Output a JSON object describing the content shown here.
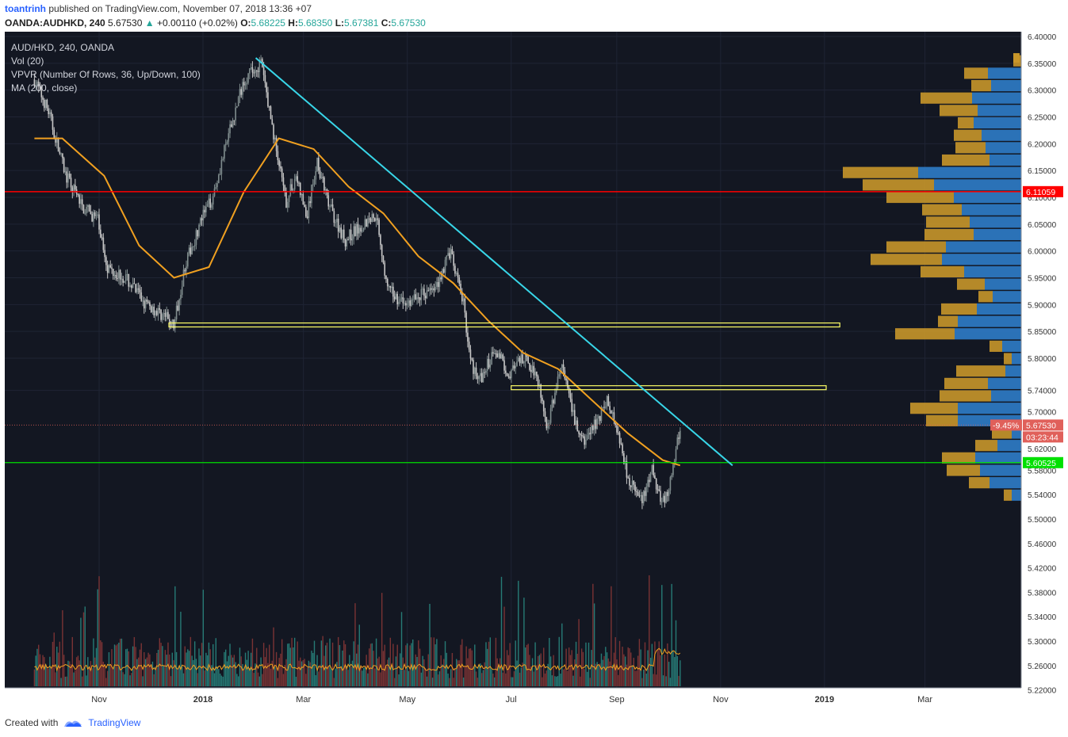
{
  "header": {
    "author": "toantrinh",
    "published": "published on TradingView.com, November 07, 2018 13:36 +07",
    "symbol": "OANDA:AUDHKD, 240",
    "last": "5.67530",
    "change": "+0.00110 (+0.02%)",
    "o_label": "O:",
    "o": "5.68225",
    "h_label": "H:",
    "h": "5.68350",
    "l_label": "L:",
    "l": "5.67381",
    "c_label": "C:",
    "c": "5.67530"
  },
  "legend": {
    "title": "AUD/HKD, 240, OANDA",
    "vol": "Vol (20)",
    "vpvr": "VPVR (Number Of Rows, 36, Up/Down, 100)",
    "ma": "MA (200, close)"
  },
  "footer": {
    "created": "Created with",
    "brand": "TradingView"
  },
  "colors": {
    "background": "#131722",
    "grid": "#1f2434",
    "candle_up": "#7f8c8d",
    "candle_down": "#c7c7c7",
    "ma": "#f0a020",
    "trendline": "#38d6e8",
    "resistance": "#ff0000",
    "support": "#00e000",
    "zone": "#ffff66",
    "vp_up": "#2f7cc8",
    "vp_down": "#c8962a",
    "vol_up": "#2a8c84",
    "vol_down": "#8c3838"
  },
  "chart_data": {
    "type": "candlestick",
    "title": "AUD/HKD, 240, OANDA",
    "x_ticks": [
      "Nov",
      "2018",
      "Mar",
      "May",
      "Jul",
      "Sep",
      "Nov",
      "2019",
      "Mar"
    ],
    "y_ticks": [
      "6.40000",
      "6.35000",
      "6.30000",
      "6.25000",
      "6.20000",
      "6.15000",
      "6.10000",
      "6.05000",
      "6.00000",
      "5.95000",
      "5.90000",
      "5.85000",
      "5.80000",
      "5.74000",
      "5.70000",
      "5.62000",
      "5.58000",
      "5.54000",
      "5.50000",
      "5.46000",
      "5.42000",
      "5.38000",
      "5.34000",
      "5.30000",
      "5.26000",
      "5.22000"
    ],
    "price_path": [
      [
        0,
        6.32
      ],
      [
        0.02,
        6.26
      ],
      [
        0.045,
        6.14
      ],
      [
        0.07,
        6.08
      ],
      [
        0.09,
        6.06
      ],
      [
        0.105,
        5.97
      ],
      [
        0.13,
        5.95
      ],
      [
        0.16,
        5.9
      ],
      [
        0.185,
        5.88
      ],
      [
        0.2,
        5.86
      ],
      [
        0.215,
        5.97
      ],
      [
        0.24,
        6.06
      ],
      [
        0.255,
        6.1
      ],
      [
        0.275,
        6.2
      ],
      [
        0.3,
        6.32
      ],
      [
        0.325,
        6.35
      ],
      [
        0.345,
        6.2
      ],
      [
        0.36,
        6.09
      ],
      [
        0.375,
        6.14
      ],
      [
        0.39,
        6.06
      ],
      [
        0.405,
        6.17
      ],
      [
        0.42,
        6.09
      ],
      [
        0.445,
        6.02
      ],
      [
        0.47,
        6.05
      ],
      [
        0.49,
        6.07
      ],
      [
        0.505,
        5.93
      ],
      [
        0.53,
        5.9
      ],
      [
        0.555,
        5.92
      ],
      [
        0.575,
        5.93
      ],
      [
        0.595,
        6.0
      ],
      [
        0.615,
        5.9
      ],
      [
        0.625,
        5.79
      ],
      [
        0.64,
        5.76
      ],
      [
        0.66,
        5.82
      ],
      [
        0.68,
        5.77
      ],
      [
        0.7,
        5.8
      ],
      [
        0.72,
        5.77
      ],
      [
        0.735,
        5.67
      ],
      [
        0.755,
        5.79
      ],
      [
        0.77,
        5.7
      ],
      [
        0.785,
        5.64
      ],
      [
        0.8,
        5.67
      ],
      [
        0.82,
        5.72
      ],
      [
        0.835,
        5.67
      ],
      [
        0.85,
        5.58
      ],
      [
        0.87,
        5.53
      ],
      [
        0.885,
        5.59
      ],
      [
        0.9,
        5.53
      ],
      [
        0.91,
        5.56
      ],
      [
        0.925,
        5.67
      ]
    ],
    "ma200": [
      [
        0,
        6.21
      ],
      [
        0.04,
        6.21
      ],
      [
        0.1,
        6.14
      ],
      [
        0.15,
        6.01
      ],
      [
        0.2,
        5.95
      ],
      [
        0.25,
        5.97
      ],
      [
        0.3,
        6.11
      ],
      [
        0.35,
        6.21
      ],
      [
        0.4,
        6.19
      ],
      [
        0.45,
        6.12
      ],
      [
        0.5,
        6.07
      ],
      [
        0.55,
        5.99
      ],
      [
        0.6,
        5.94
      ],
      [
        0.65,
        5.87
      ],
      [
        0.7,
        5.81
      ],
      [
        0.75,
        5.78
      ],
      [
        0.8,
        5.72
      ],
      [
        0.85,
        5.66
      ],
      [
        0.9,
        5.61
      ],
      [
        0.925,
        5.6
      ]
    ],
    "trendline": {
      "start": [
        "2018-02-01",
        6.36
      ],
      "end": [
        "2018-11-08",
        5.6
      ]
    },
    "horizontal_lines": [
      {
        "price": 6.11059,
        "label": "6.11059"
      },
      {
        "price": 5.60525,
        "label": "5.60525"
      }
    ],
    "zones": [
      {
        "from": "2017-12-12",
        "to": "2019-01-10",
        "price": 5.862
      },
      {
        "from": "2018-07-01",
        "to": "2019-01-02",
        "price": 5.745
      }
    ],
    "last_price": {
      "price": 5.6753,
      "label": "5.67530",
      "pct": "-9.45%",
      "countdown": "03:23:44"
    },
    "volume_profile": {
      "rows_top_price": 6.365,
      "row_height": 0.02314,
      "up": [
        0,
        42,
        38,
        62,
        55,
        60,
        50,
        45,
        40,
        130,
        110,
        85,
        75,
        65,
        60,
        95,
        100,
        72,
        46,
        36,
        56,
        80,
        84,
        24,
        12,
        20,
        42,
        38,
        80,
        80,
        12,
        30,
        58,
        52,
        40,
        12
      ],
      "down": [
        10,
        30,
        25,
        65,
        48,
        20,
        35,
        38,
        60,
        95,
        90,
        85,
        50,
        55,
        62,
        75,
        90,
        55,
        35,
        18,
        45,
        25,
        75,
        16,
        10,
        62,
        55,
        65,
        60,
        40,
        25,
        28,
        42,
        42,
        26,
        10
      ]
    },
    "volume": {
      "ylim": [
        0,
        100
      ]
    }
  }
}
